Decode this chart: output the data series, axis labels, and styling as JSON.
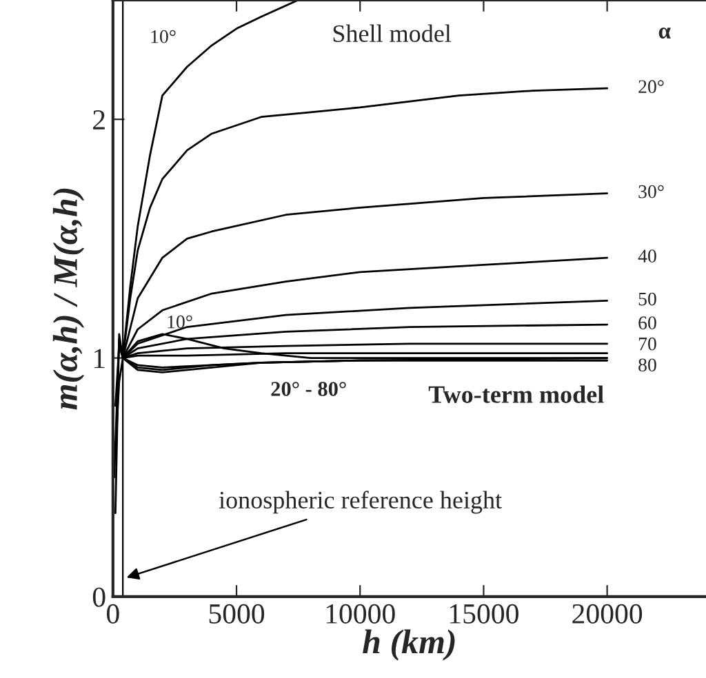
{
  "chart_data": {
    "type": "line",
    "xlabel": "h (km)",
    "ylabel": "m(α,h) / M(α,h)",
    "xlim": [
      0,
      24000
    ],
    "ylim": [
      0,
      2.5
    ],
    "xticks": [
      0,
      5000,
      10000,
      15000,
      20000
    ],
    "yticks": [
      0,
      1,
      2
    ],
    "grid": false,
    "legend": false,
    "marker": "none",
    "line_style": "solid",
    "series": [
      {
        "name": "10°",
        "color": "#000000",
        "x": [
          400,
          700,
          1000,
          1500,
          2000,
          3000,
          4000,
          5000,
          6000,
          7500
        ],
        "values": [
          1,
          1.3,
          1.55,
          1.85,
          2.1,
          2.22,
          2.31,
          2.38,
          2.43,
          2.5
        ]
      },
      {
        "name": "20°",
        "color": "#000000",
        "x": [
          400,
          700,
          1000,
          1500,
          2000,
          3000,
          4000,
          6000,
          8000,
          10000,
          14000,
          17000,
          20000
        ],
        "values": [
          1,
          1.25,
          1.45,
          1.63,
          1.75,
          1.87,
          1.94,
          2.01,
          2.03,
          2.05,
          2.1,
          2.12,
          2.13
        ]
      },
      {
        "name": "30°",
        "color": "#000000",
        "x": [
          400,
          1000,
          2000,
          3000,
          4000,
          7000,
          10000,
          15000,
          20000
        ],
        "values": [
          1,
          1.25,
          1.42,
          1.5,
          1.53,
          1.6,
          1.63,
          1.67,
          1.69
        ]
      },
      {
        "name": "40",
        "color": "#000000",
        "x": [
          400,
          1000,
          2000,
          4000,
          7000,
          10000,
          15000,
          20000
        ],
        "values": [
          1,
          1.12,
          1.2,
          1.27,
          1.32,
          1.36,
          1.39,
          1.42
        ]
      },
      {
        "name": "50",
        "color": "#000000",
        "x": [
          400,
          1000,
          3000,
          7000,
          12000,
          20000
        ],
        "values": [
          1,
          1.06,
          1.13,
          1.18,
          1.21,
          1.24
        ]
      },
      {
        "name": "60",
        "color": "#000000",
        "x": [
          400,
          1000,
          3000,
          7000,
          12000,
          20000
        ],
        "values": [
          1,
          1.04,
          1.08,
          1.11,
          1.13,
          1.14
        ]
      },
      {
        "name": "70",
        "color": "#000000",
        "x": [
          400,
          1000,
          3000,
          7000,
          12000,
          20000
        ],
        "values": [
          1,
          1.02,
          1.04,
          1.05,
          1.06,
          1.06
        ]
      },
      {
        "name": "80",
        "color": "#000000",
        "x": [
          400,
          1000,
          3000,
          7000,
          12000,
          20000
        ],
        "values": [
          1,
          1.01,
          1.01,
          1.02,
          1.02,
          1.02
        ]
      },
      {
        "name": "10°",
        "color": "#000000",
        "x": [
          50,
          250,
          400,
          1000,
          2000,
          3000,
          4500,
          6000,
          8000,
          20000
        ],
        "values": [
          0.5,
          1.08,
          1,
          1.07,
          1.1,
          1.08,
          1.04,
          1.02,
          1.0,
          1.0
        ]
      },
      {
        "color": "#000000",
        "x": [
          100,
          250,
          400,
          1000,
          2000,
          4000,
          6000,
          10000,
          20000
        ],
        "values": [
          0.35,
          1.1,
          1,
          0.96,
          0.95,
          0.97,
          0.98,
          0.99,
          1.0
        ]
      },
      {
        "color": "#000000",
        "x": [
          100,
          250,
          400,
          1000,
          2000,
          4000,
          6000,
          10000,
          20000
        ],
        "values": [
          0.6,
          0.9,
          1,
          0.95,
          0.94,
          0.96,
          0.98,
          0.99,
          0.99
        ]
      },
      {
        "color": "#000000",
        "x": [
          100,
          250,
          400,
          1000,
          2000,
          4000,
          6000,
          10000,
          20000
        ],
        "values": [
          0.8,
          1.05,
          1,
          0.97,
          0.96,
          0.97,
          0.98,
          0.99,
          0.99
        ]
      }
    ],
    "ref_lines": [
      {
        "axis": "x",
        "value": 400,
        "color": "#000000",
        "label": "ionospheric reference height"
      }
    ],
    "annotations": [
      "Shell model",
      "α",
      "20° - 80°",
      "Two-term model"
    ]
  }
}
